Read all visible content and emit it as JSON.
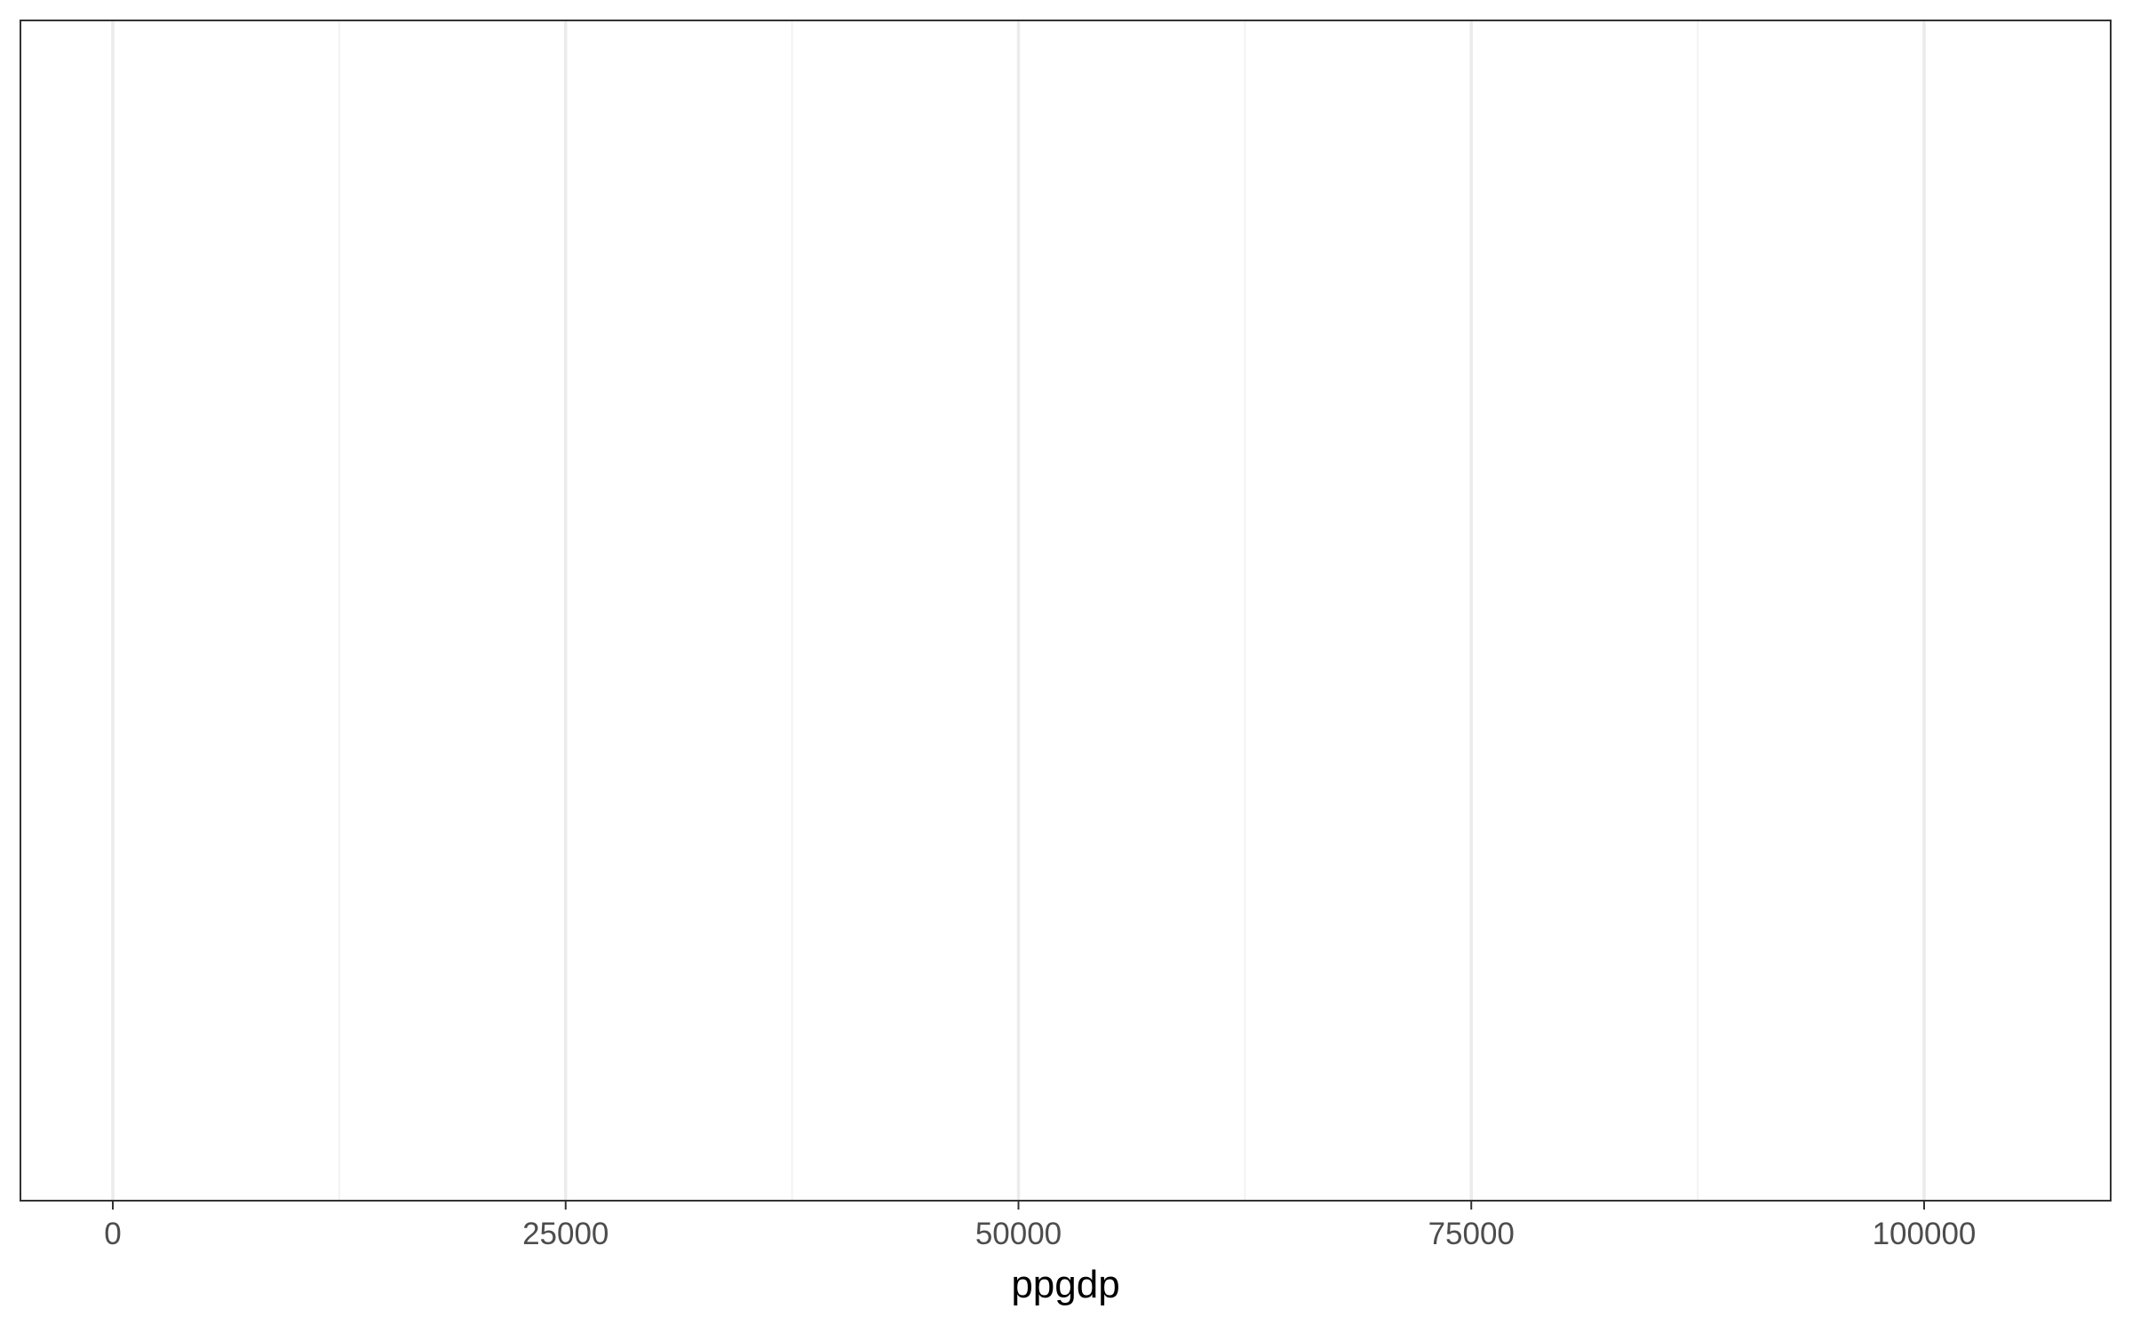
{
  "chart_data": {
    "type": "scatter",
    "title": "",
    "xlabel": "ppgdp",
    "ylabel": "",
    "xlim": [
      -5100,
      110300
    ],
    "x_ticks": [
      0,
      25000,
      50000,
      75000,
      100000
    ],
    "x_tick_labels": [
      "0",
      "25000",
      "50000",
      "75000",
      "100000"
    ],
    "x_minor_ticks": [
      12500,
      37500,
      62500,
      87500
    ],
    "y_ticks": [],
    "grid": true,
    "legend": "none",
    "series": [],
    "colors": {
      "panel_border": "#333333",
      "grid_major": "#ebebeb",
      "grid_minor": "#f2f2f2",
      "tick_mark": "#333333",
      "tick_label": "#4d4d4d",
      "axis_title": "#000000",
      "background": "#ffffff"
    }
  }
}
